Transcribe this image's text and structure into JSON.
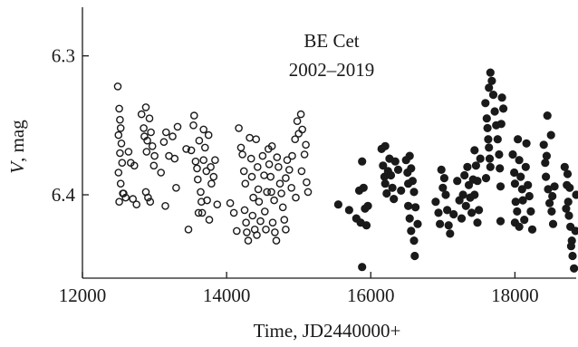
{
  "chart_data": {
    "type": "scatter",
    "title": "BE Cet",
    "subtitle": "2002–2019",
    "xlabel": "Time, JD2440000+",
    "ylabel_italic": "V",
    "ylabel_rest": ", mag",
    "xlim": [
      12000,
      18850
    ],
    "ylim": [
      6.46,
      6.265
    ],
    "y_inverted": true,
    "x_ticks": [
      {
        "value": 12000,
        "label": "12000"
      },
      {
        "value": 14000,
        "label": "14000"
      },
      {
        "value": 16000,
        "label": "16000"
      },
      {
        "value": 18000,
        "label": "18000"
      }
    ],
    "y_ticks": [
      {
        "value": 6.3,
        "label": "6.3"
      },
      {
        "value": 6.4,
        "label": "6.4"
      }
    ],
    "grid": false,
    "series": [
      {
        "marker": "open-circle",
        "points": [
          [
            12490,
            6.322
          ],
          [
            12510,
            6.338
          ],
          [
            12520,
            6.346
          ],
          [
            12530,
            6.352
          ],
          [
            12500,
            6.357
          ],
          [
            12540,
            6.363
          ],
          [
            12520,
            6.37
          ],
          [
            12550,
            6.377
          ],
          [
            12500,
            6.384
          ],
          [
            12530,
            6.392
          ],
          [
            12560,
            6.399
          ],
          [
            12510,
            6.405
          ],
          [
            12570,
            6.399
          ],
          [
            12600,
            6.402
          ],
          [
            12640,
            6.369
          ],
          [
            12670,
            6.377
          ],
          [
            12700,
            6.403
          ],
          [
            12720,
            6.379
          ],
          [
            12750,
            6.407
          ],
          [
            12820,
            6.342
          ],
          [
            12850,
            6.352
          ],
          [
            12880,
            6.337
          ],
          [
            12860,
            6.358
          ],
          [
            12900,
            6.361
          ],
          [
            12930,
            6.345
          ],
          [
            12950,
            6.355
          ],
          [
            12970,
            6.365
          ],
          [
            12890,
            6.369
          ],
          [
            13000,
            6.372
          ],
          [
            12880,
            6.398
          ],
          [
            12910,
            6.402
          ],
          [
            12940,
            6.405
          ],
          [
            12990,
            6.379
          ],
          [
            13090,
            6.384
          ],
          [
            13130,
            6.362
          ],
          [
            13160,
            6.355
          ],
          [
            13200,
            6.372
          ],
          [
            13250,
            6.358
          ],
          [
            13280,
            6.374
          ],
          [
            13150,
            6.408
          ],
          [
            13300,
            6.395
          ],
          [
            13320,
            6.351
          ],
          [
            13440,
            6.367
          ],
          [
            13470,
            6.425
          ],
          [
            13510,
            6.368
          ],
          [
            13540,
            6.35
          ],
          [
            13570,
            6.376
          ],
          [
            13590,
            6.381
          ],
          [
            13600,
            6.389
          ],
          [
            13620,
            6.361
          ],
          [
            13640,
            6.398
          ],
          [
            13650,
            6.405
          ],
          [
            13660,
            6.413
          ],
          [
            13680,
            6.375
          ],
          [
            13700,
            6.366
          ],
          [
            13720,
            6.383
          ],
          [
            13550,
            6.343
          ],
          [
            13750,
            6.357
          ],
          [
            13780,
            6.38
          ],
          [
            13790,
            6.392
          ],
          [
            13820,
            6.387
          ],
          [
            13840,
            6.375
          ],
          [
            13680,
            6.353
          ],
          [
            13730,
            6.404
          ],
          [
            13760,
            6.418
          ],
          [
            13870,
            6.407
          ],
          [
            13610,
            6.413
          ],
          [
            14050,
            6.406
          ],
          [
            14100,
            6.413
          ],
          [
            14140,
            6.426
          ],
          [
            14170,
            6.352
          ],
          [
            14200,
            6.366
          ],
          [
            14220,
            6.371
          ],
          [
            14240,
            6.383
          ],
          [
            14260,
            6.392
          ],
          [
            14250,
            6.411
          ],
          [
            14270,
            6.42
          ],
          [
            14280,
            6.427
          ],
          [
            14300,
            6.433
          ],
          [
            14320,
            6.359
          ],
          [
            14340,
            6.374
          ],
          [
            14350,
            6.387
          ],
          [
            14370,
            6.402
          ],
          [
            14360,
            6.415
          ],
          [
            14390,
            6.425
          ],
          [
            14410,
            6.36
          ],
          [
            14430,
            6.38
          ],
          [
            14440,
            6.396
          ],
          [
            14450,
            6.405
          ],
          [
            14470,
            6.419
          ],
          [
            14420,
            6.429
          ],
          [
            14500,
            6.372
          ],
          [
            14520,
            6.386
          ],
          [
            14530,
            6.412
          ],
          [
            14545,
            6.425
          ],
          [
            14580,
            6.367
          ],
          [
            14590,
            6.378
          ],
          [
            14610,
            6.387
          ],
          [
            14620,
            6.398
          ],
          [
            14630,
            6.365
          ],
          [
            14640,
            6.42
          ],
          [
            14660,
            6.404
          ],
          [
            14670,
            6.427
          ],
          [
            14690,
            6.433
          ],
          [
            14700,
            6.373
          ],
          [
            14720,
            6.38
          ],
          [
            14740,
            6.392
          ],
          [
            14760,
            6.399
          ],
          [
            14780,
            6.409
          ],
          [
            14800,
            6.418
          ],
          [
            14820,
            6.425
          ],
          [
            14840,
            6.375
          ],
          [
            14870,
            6.382
          ],
          [
            14900,
            6.395
          ],
          [
            14910,
            6.372
          ],
          [
            14950,
            6.36
          ],
          [
            14980,
            6.347
          ],
          [
            15000,
            6.356
          ],
          [
            15030,
            6.342
          ],
          [
            15050,
            6.353
          ],
          [
            15080,
            6.371
          ],
          [
            15110,
            6.391
          ],
          [
            15130,
            6.398
          ],
          [
            14960,
            6.402
          ],
          [
            15040,
            6.383
          ],
          [
            15100,
            6.364
          ],
          [
            14820,
            6.388
          ],
          [
            14560,
            6.398
          ]
        ]
      },
      {
        "marker": "filled-circle",
        "points": [
          [
            15550,
            6.407
          ],
          [
            15700,
            6.411
          ],
          [
            15800,
            6.417
          ],
          [
            15840,
            6.397
          ],
          [
            15880,
            6.376
          ],
          [
            15900,
            6.395
          ],
          [
            15920,
            6.41
          ],
          [
            15940,
            6.422
          ],
          [
            15860,
            6.42
          ],
          [
            15880,
            6.452
          ],
          [
            15960,
            6.408
          ],
          [
            16150,
            6.367
          ],
          [
            16170,
            6.379
          ],
          [
            16190,
            6.387
          ],
          [
            16200,
            6.392
          ],
          [
            16220,
            6.399
          ],
          [
            16240,
            6.383
          ],
          [
            16260,
            6.374
          ],
          [
            16280,
            6.386
          ],
          [
            16300,
            6.395
          ],
          [
            16320,
            6.403
          ],
          [
            16340,
            6.376
          ],
          [
            16380,
            6.382
          ],
          [
            16200,
            6.365
          ],
          [
            16420,
            6.397
          ],
          [
            16490,
            6.375
          ],
          [
            16510,
            6.384
          ],
          [
            16520,
            6.392
          ],
          [
            16540,
            6.372
          ],
          [
            16560,
            6.381
          ],
          [
            16580,
            6.39
          ],
          [
            16600,
            6.398
          ],
          [
            16520,
            6.408
          ],
          [
            16540,
            6.417
          ],
          [
            16560,
            6.426
          ],
          [
            16600,
            6.433
          ],
          [
            16620,
            6.409
          ],
          [
            16650,
            6.421
          ],
          [
            16610,
            6.444
          ],
          [
            16900,
            6.405
          ],
          [
            16940,
            6.413
          ],
          [
            16960,
            6.421
          ],
          [
            16980,
            6.382
          ],
          [
            17000,
            6.395
          ],
          [
            17020,
            6.388
          ],
          [
            17040,
            6.4
          ],
          [
            17060,
            6.411
          ],
          [
            17080,
            6.422
          ],
          [
            17100,
            6.428
          ],
          [
            17150,
            6.414
          ],
          [
            17200,
            6.39
          ],
          [
            17230,
            6.404
          ],
          [
            17260,
            6.417
          ],
          [
            17280,
            6.4
          ],
          [
            17300,
            6.386
          ],
          [
            17320,
            6.408
          ],
          [
            17340,
            6.38
          ],
          [
            17360,
            6.393
          ],
          [
            17380,
            6.402
          ],
          [
            17400,
            6.413
          ],
          [
            17420,
            6.389
          ],
          [
            17440,
            6.4
          ],
          [
            17460,
            6.379
          ],
          [
            17480,
            6.39
          ],
          [
            17500,
            6.411
          ],
          [
            17520,
            6.374
          ],
          [
            17440,
            6.368
          ],
          [
            17480,
            6.42
          ],
          [
            17590,
            6.334
          ],
          [
            17610,
            6.345
          ],
          [
            17620,
            6.352
          ],
          [
            17630,
            6.36
          ],
          [
            17640,
            6.366
          ],
          [
            17650,
            6.374
          ],
          [
            17660,
            6.38
          ],
          [
            17640,
            6.323
          ],
          [
            17660,
            6.312
          ],
          [
            17680,
            6.318
          ],
          [
            17700,
            6.328
          ],
          [
            17720,
            6.34
          ],
          [
            17740,
            6.35
          ],
          [
            17760,
            6.36
          ],
          [
            17780,
            6.371
          ],
          [
            17790,
            6.381
          ],
          [
            17800,
            6.394
          ],
          [
            17810,
            6.349
          ],
          [
            17820,
            6.33
          ],
          [
            17840,
            6.338
          ],
          [
            17600,
            6.388
          ],
          [
            17800,
            6.419
          ],
          [
            17970,
            6.371
          ],
          [
            17990,
            6.384
          ],
          [
            18000,
            6.392
          ],
          [
            18010,
            6.405
          ],
          [
            18030,
            6.412
          ],
          [
            18040,
            6.36
          ],
          [
            18060,
            6.375
          ],
          [
            18080,
            6.387
          ],
          [
            18100,
            6.396
          ],
          [
            18110,
            6.404
          ],
          [
            18130,
            6.418
          ],
          [
            18150,
            6.38
          ],
          [
            18160,
            6.363
          ],
          [
            18180,
            6.393
          ],
          [
            18200,
            6.401
          ],
          [
            18220,
            6.412
          ],
          [
            18240,
            6.425
          ],
          [
            18000,
            6.42
          ],
          [
            18060,
            6.423
          ],
          [
            18400,
            6.364
          ],
          [
            18420,
            6.377
          ],
          [
            18430,
            6.387
          ],
          [
            18450,
            6.343
          ],
          [
            18460,
            6.396
          ],
          [
            18480,
            6.406
          ],
          [
            18500,
            6.357
          ],
          [
            18510,
            6.412
          ],
          [
            18530,
            6.421
          ],
          [
            18550,
            6.394
          ],
          [
            18440,
            6.372
          ],
          [
            18520,
            6.401
          ],
          [
            18690,
            6.38
          ],
          [
            18720,
            6.393
          ],
          [
            18740,
            6.405
          ],
          [
            18750,
            6.415
          ],
          [
            18770,
            6.423
          ],
          [
            18790,
            6.433
          ],
          [
            18800,
            6.444
          ],
          [
            18820,
            6.453
          ],
          [
            18850,
            6.4
          ],
          [
            18760,
            6.395
          ],
          [
            18730,
            6.385
          ],
          [
            18710,
            6.41
          ],
          [
            18780,
            6.437
          ],
          [
            18840,
            6.426
          ]
        ]
      }
    ]
  }
}
